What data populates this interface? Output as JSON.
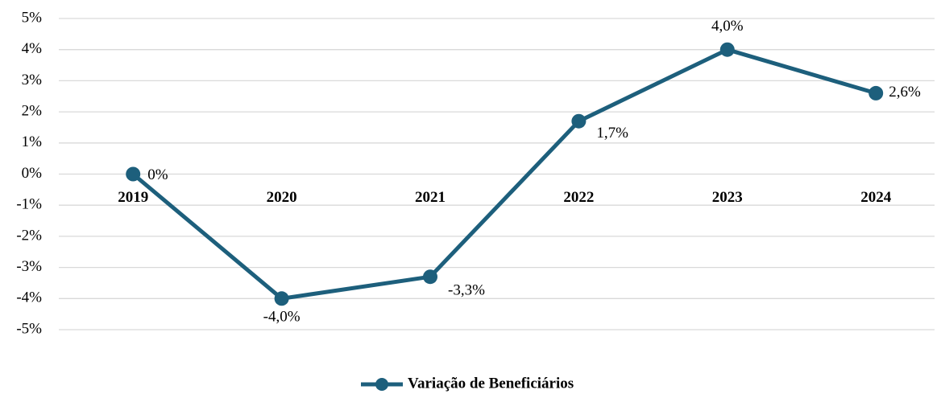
{
  "chart_data": {
    "type": "line",
    "categories": [
      "2019",
      "2020",
      "2021",
      "2022",
      "2023",
      "2024"
    ],
    "series": [
      {
        "name": "Variação de Beneficiários",
        "color": "#1d5f7c",
        "values": [
          0,
          -4.0,
          -3.3,
          1.7,
          4.0,
          2.6
        ],
        "value_labels": [
          "0%",
          "-4,0%",
          "-3,3%",
          "1,7%",
          "4,0%",
          "2,6%"
        ]
      }
    ],
    "ylim": [
      -5,
      5
    ],
    "yticks": [
      {
        "value": 5,
        "label": "5%"
      },
      {
        "value": 4,
        "label": "4%"
      },
      {
        "value": 3,
        "label": "3%"
      },
      {
        "value": 2,
        "label": "2%"
      },
      {
        "value": 1,
        "label": "1%"
      },
      {
        "value": 0,
        "label": "0%"
      },
      {
        "value": -1,
        "label": "-1%"
      },
      {
        "value": -2,
        "label": "-2%"
      },
      {
        "value": -3,
        "label": "-3%"
      },
      {
        "value": -4,
        "label": "-4%"
      },
      {
        "value": -5,
        "label": "-5%"
      }
    ],
    "grid": true,
    "legend": "bottom"
  }
}
